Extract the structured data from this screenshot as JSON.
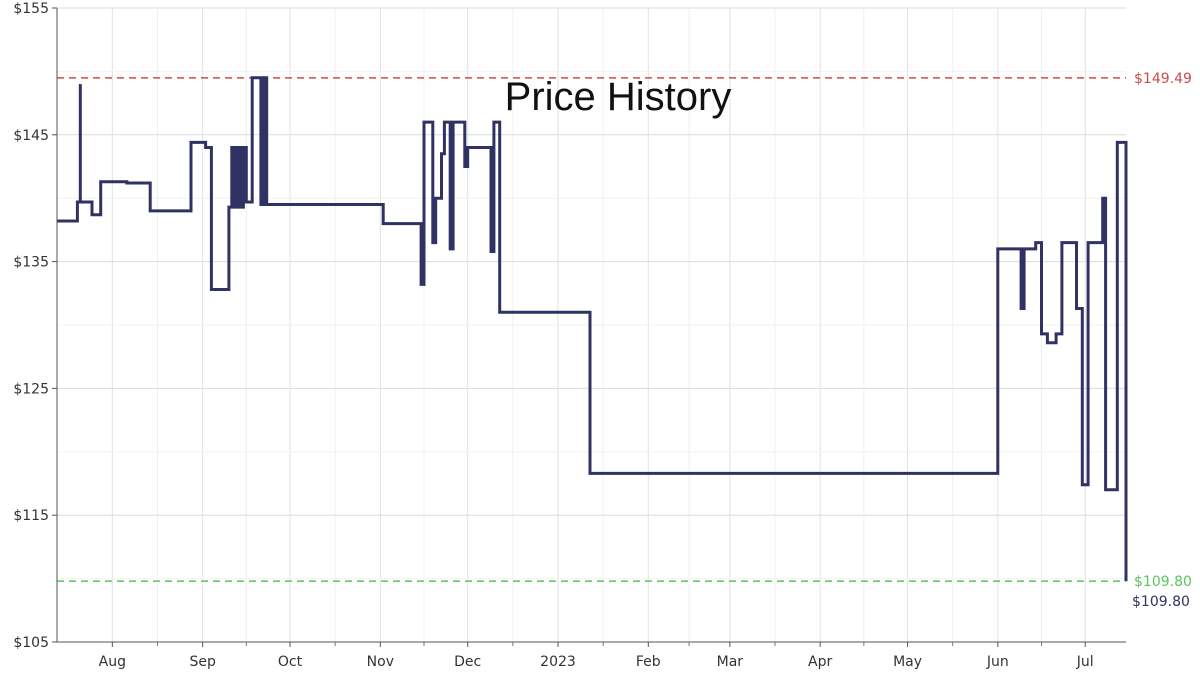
{
  "chart_data": {
    "type": "line",
    "title": "Price History",
    "xlabel": "",
    "ylabel": "",
    "ylim": [
      105,
      155
    ],
    "y_ticks": [
      105,
      115,
      125,
      135,
      145,
      155
    ],
    "y_tick_labels": [
      "$105",
      "$115",
      "$125",
      "$135",
      "$145",
      "$155"
    ],
    "x_ticks": [
      "2022-08-01",
      "2022-09-01",
      "2022-10-01",
      "2022-11-01",
      "2022-12-01",
      "2023-01-01",
      "2023-02-01",
      "2023-03-01",
      "2023-04-01",
      "2023-05-01",
      "2023-06-01",
      "2023-07-01"
    ],
    "x_tick_labels": [
      "Aug",
      "Sep",
      "Oct",
      "Nov",
      "Dec",
      "2023",
      "Feb",
      "Mar",
      "Apr",
      "May",
      "Jun",
      "Jul"
    ],
    "xlim": [
      "2022-07-13",
      "2023-07-15"
    ],
    "grid": true,
    "step": true,
    "colors": {
      "line": "#2f3263",
      "high": "#d04a4a",
      "low": "#5cc45c",
      "current": "#2f3263"
    },
    "reference_lines": [
      {
        "label": "$149.49",
        "value": 149.49,
        "color": "#d04a4a"
      },
      {
        "label": "$109.80",
        "value": 109.8,
        "color": "#5cc45c"
      }
    ],
    "current_label": "$109.80",
    "series": [
      {
        "values": [
          [
            "2022-07-13",
            138.2
          ],
          [
            "2022-07-20",
            139.7
          ],
          [
            "2022-07-21",
            149.0
          ],
          [
            "2022-07-21",
            139.7
          ],
          [
            "2022-07-25",
            138.7
          ],
          [
            "2022-07-28",
            141.3
          ],
          [
            "2022-08-06",
            141.2
          ],
          [
            "2022-08-14",
            139.0
          ],
          [
            "2022-08-28",
            144.4
          ],
          [
            "2022-09-02",
            144.0
          ],
          [
            "2022-09-04",
            132.8
          ],
          [
            "2022-09-10",
            139.3
          ],
          [
            "2022-09-11",
            144.0
          ],
          [
            "2022-09-12",
            139.3
          ],
          [
            "2022-09-13",
            144.0
          ],
          [
            "2022-09-14",
            139.3
          ],
          [
            "2022-09-15",
            144.0
          ],
          [
            "2022-09-16",
            139.7
          ],
          [
            "2022-09-18",
            149.5
          ],
          [
            "2022-09-21",
            139.5
          ],
          [
            "2022-09-22",
            149.5
          ],
          [
            "2022-09-23",
            139.5
          ],
          [
            "2022-11-02",
            138.0
          ],
          [
            "2022-11-15",
            133.2
          ],
          [
            "2022-11-16",
            146.0
          ],
          [
            "2022-11-19",
            136.5
          ],
          [
            "2022-11-20",
            140.0
          ],
          [
            "2022-11-22",
            143.5
          ],
          [
            "2022-11-23",
            146.0
          ],
          [
            "2022-11-25",
            136.0
          ],
          [
            "2022-11-26",
            146.0
          ],
          [
            "2022-11-30",
            142.5
          ],
          [
            "2022-12-01",
            144.0
          ],
          [
            "2022-12-09",
            135.8
          ],
          [
            "2022-12-10",
            146.0
          ],
          [
            "2022-12-12",
            131.0
          ],
          [
            "2023-01-12",
            118.3
          ],
          [
            "2023-06-01",
            136.0
          ],
          [
            "2023-06-09",
            131.3
          ],
          [
            "2023-06-10",
            136.0
          ],
          [
            "2023-06-14",
            136.5
          ],
          [
            "2023-06-16",
            129.3
          ],
          [
            "2023-06-18",
            128.6
          ],
          [
            "2023-06-21",
            129.3
          ],
          [
            "2023-06-23",
            136.5
          ],
          [
            "2023-06-28",
            131.3
          ],
          [
            "2023-06-30",
            117.4
          ],
          [
            "2023-07-02",
            136.5
          ],
          [
            "2023-07-07",
            140.0
          ],
          [
            "2023-07-08",
            117.0
          ],
          [
            "2023-07-12",
            144.4
          ],
          [
            "2023-07-15",
            109.8
          ]
        ]
      }
    ]
  }
}
